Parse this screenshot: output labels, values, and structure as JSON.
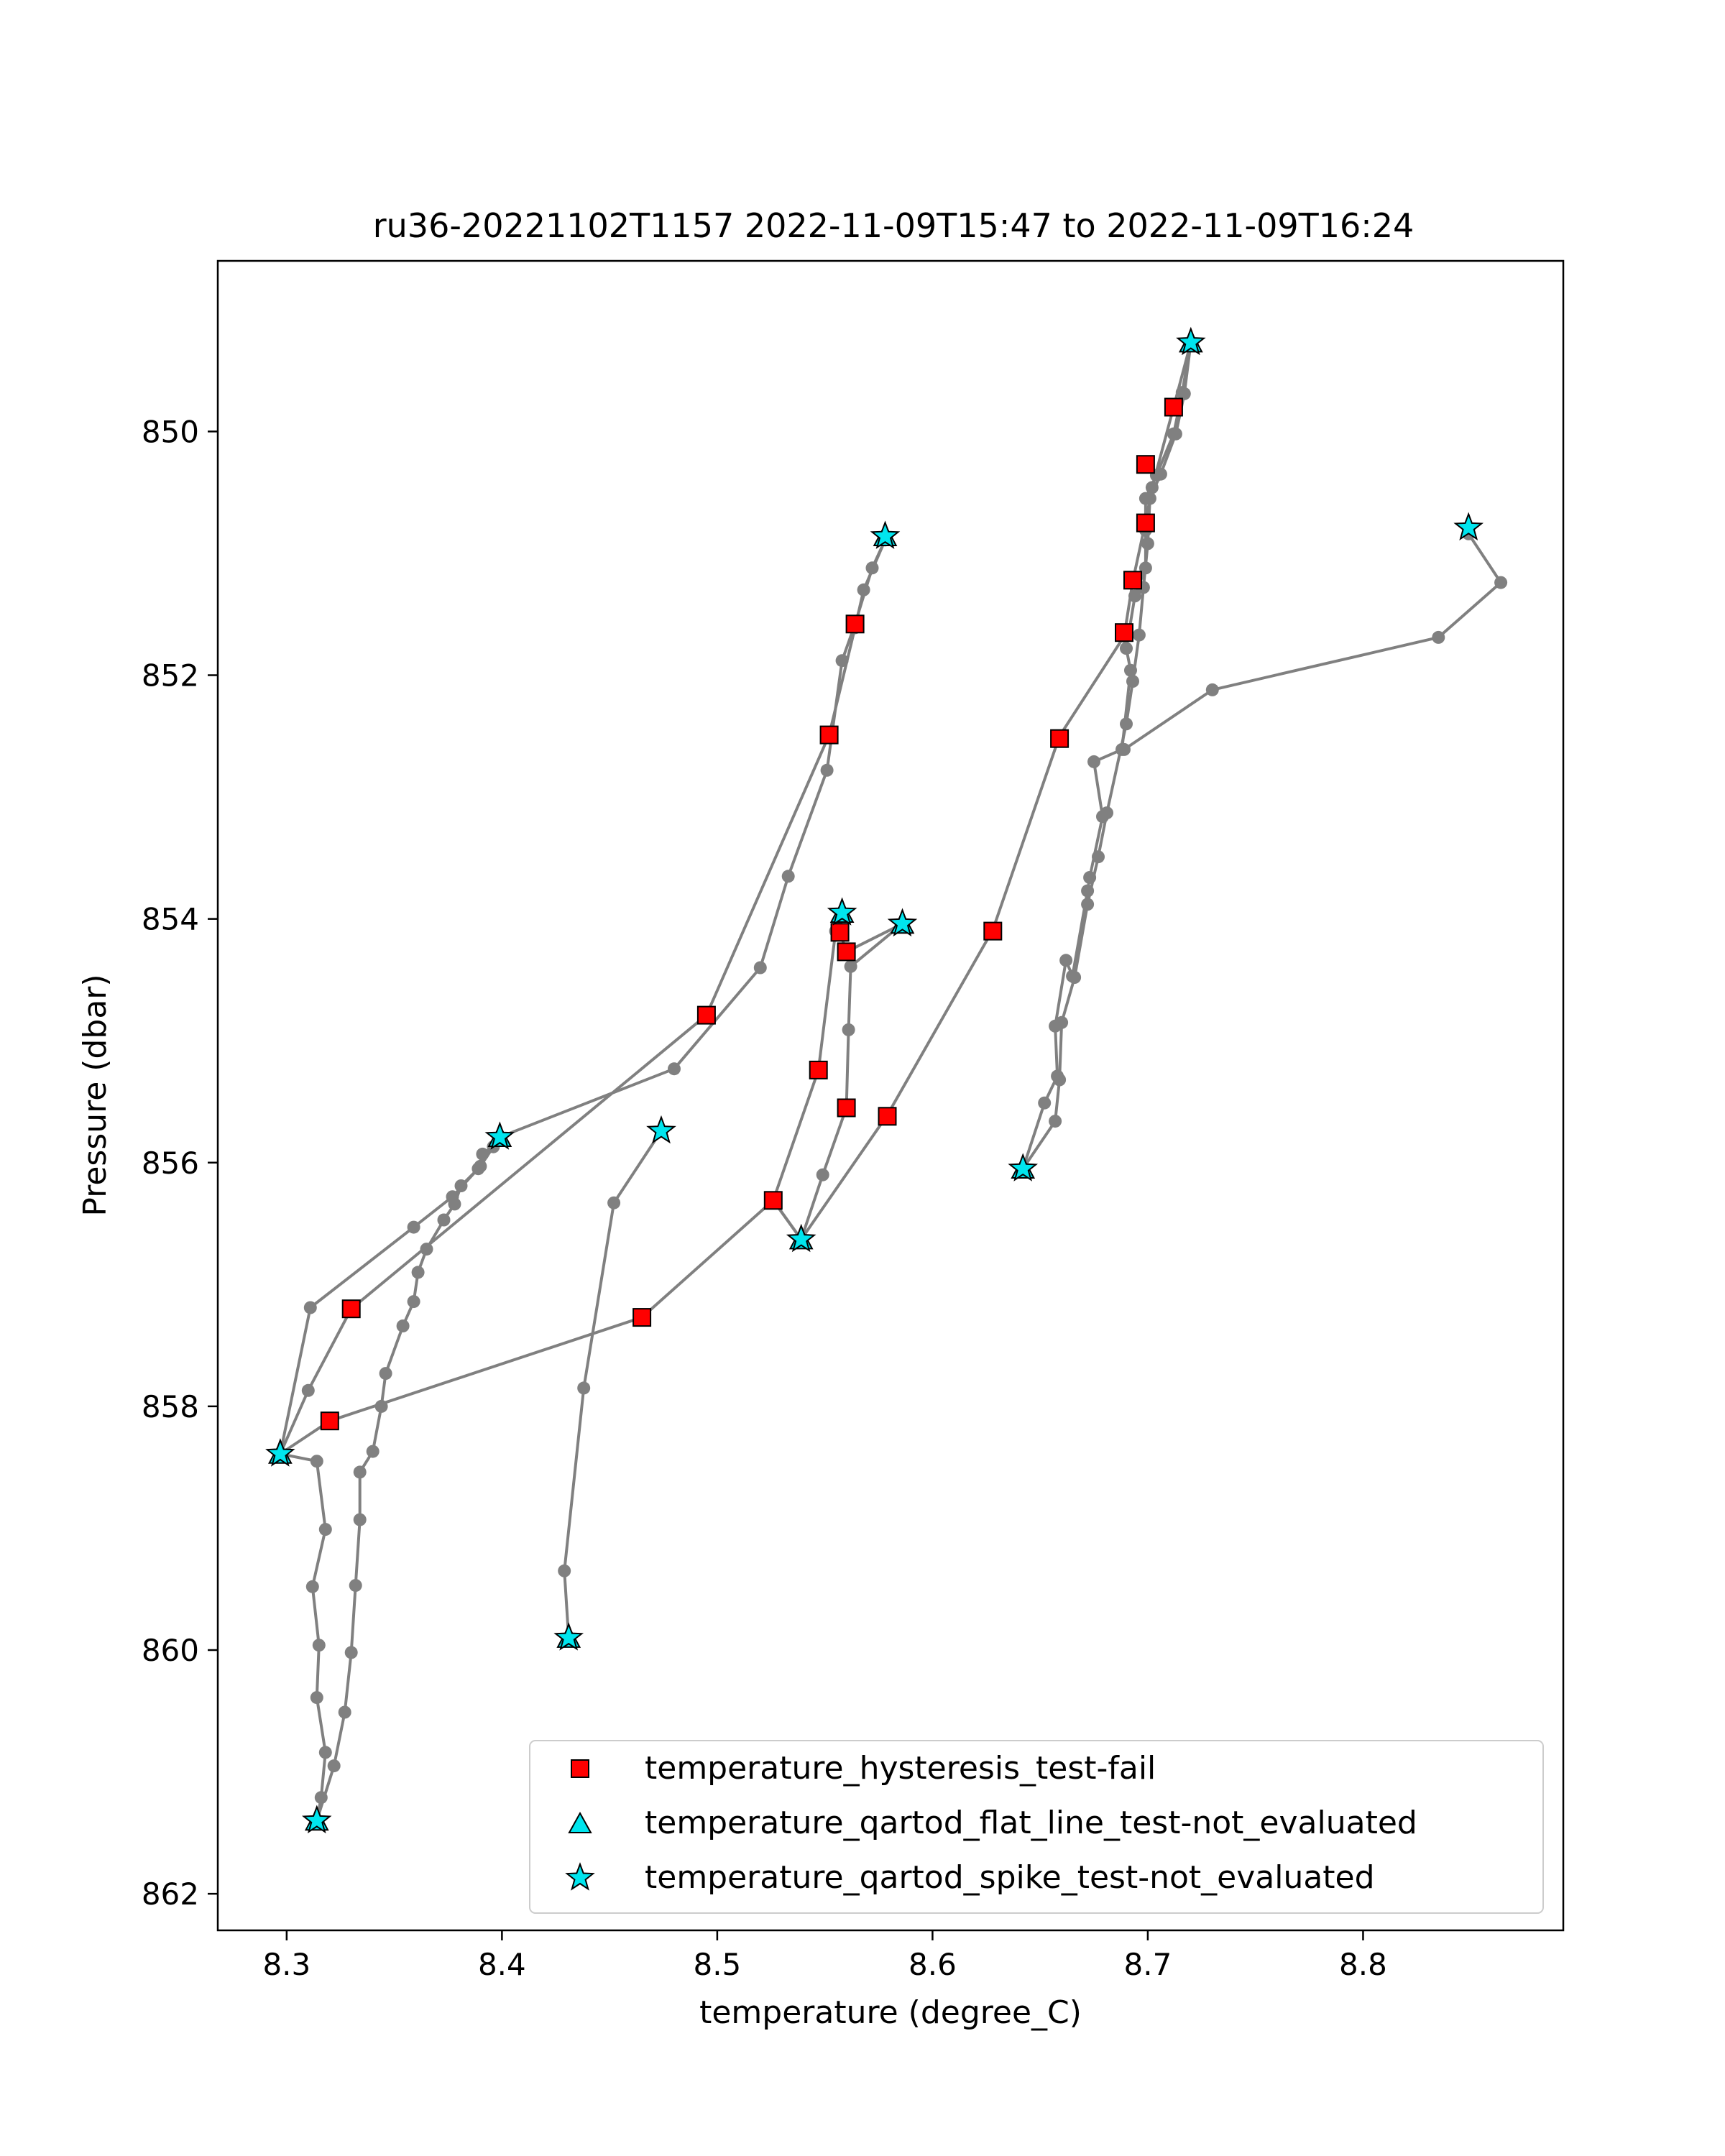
{
  "chart_data": {
    "type": "scatter",
    "title": "ru36-20221102T1157 2022-11-09T15:47 to 2022-11-09T16:24",
    "xlabel": "temperature (degree_C)",
    "ylabel": "Pressure (dbar)",
    "xlim": [
      8.268,
      8.893
    ],
    "ylim": [
      862.3,
      848.6
    ],
    "y_inverted": true,
    "grid": false,
    "legend_position": "lower-right",
    "x_ticks": [
      "8.3",
      "8.4",
      "8.5",
      "8.6",
      "8.7",
      "8.8"
    ],
    "y_ticks": [
      "850",
      "852",
      "854",
      "856",
      "858",
      "860",
      "862"
    ],
    "colors": {
      "line": "#808080",
      "hysteresis_fill": "#ff0000",
      "flatline_fill": "#00e5ee",
      "spike_fill": "#00e5ee",
      "marker_edge": "#000000"
    },
    "profiles": [
      [
        [
          8.72,
          849.27
        ],
        [
          8.716,
          849.68
        ],
        [
          8.712,
          850.02
        ],
        [
          8.704,
          850.36
        ],
        [
          8.699,
          850.55
        ],
        [
          8.699,
          850.81
        ],
        [
          8.699,
          851.12
        ],
        [
          8.694,
          851.35
        ],
        [
          8.69,
          851.78
        ],
        [
          8.692,
          851.96
        ],
        [
          8.688,
          852.61
        ],
        [
          8.675,
          852.71
        ],
        [
          8.679,
          853.16
        ],
        [
          8.673,
          853.66
        ],
        [
          8.672,
          853.77
        ],
        [
          8.665,
          854.47
        ],
        [
          8.662,
          854.34
        ],
        [
          8.657,
          854.88
        ],
        [
          8.658,
          855.29
        ],
        [
          8.652,
          855.51
        ],
        [
          8.642,
          856.05
        ]
      ],
      [
        [
          8.642,
          856.05
        ],
        [
          8.657,
          855.66
        ],
        [
          8.659,
          855.32
        ],
        [
          8.66,
          854.85
        ],
        [
          8.666,
          854.48
        ],
        [
          8.672,
          853.88
        ],
        [
          8.677,
          853.49
        ],
        [
          8.681,
          853.13
        ],
        [
          8.69,
          852.4
        ],
        [
          8.693,
          852.05
        ],
        [
          8.696,
          851.67
        ],
        [
          8.698,
          851.28
        ],
        [
          8.7,
          850.92
        ],
        [
          8.701,
          850.55
        ],
        [
          8.706,
          850.35
        ],
        [
          8.713,
          850.02
        ],
        [
          8.717,
          849.69
        ],
        [
          8.72,
          849.27
        ]
      ],
      [
        [
          8.72,
          849.27
        ],
        [
          8.712,
          849.8
        ],
        [
          8.702,
          850.46
        ],
        [
          8.699,
          850.74
        ],
        [
          8.693,
          851.23
        ],
        [
          8.689,
          851.68
        ],
        [
          8.659,
          852.5
        ],
        [
          8.628,
          854.09
        ],
        [
          8.579,
          855.61
        ],
        [
          8.539,
          856.63
        ]
      ],
      [
        [
          8.539,
          856.63
        ],
        [
          8.549,
          856.1
        ],
        [
          8.56,
          855.55
        ],
        [
          8.561,
          854.91
        ],
        [
          8.562,
          854.39
        ],
        [
          8.586,
          854.04
        ]
      ],
      [
        [
          8.586,
          854.04
        ],
        [
          8.56,
          854.27
        ],
        [
          8.557,
          854.11
        ],
        [
          8.558,
          853.95
        ],
        [
          8.555,
          854.1
        ],
        [
          8.547,
          855.24
        ],
        [
          8.526,
          856.31
        ],
        [
          8.539,
          856.63
        ]
      ],
      [
        [
          8.539,
          856.63
        ],
        [
          8.526,
          856.31
        ],
        [
          8.465,
          857.27
        ],
        [
          8.32,
          858.12
        ],
        [
          8.297,
          858.39
        ]
      ],
      [
        [
          8.297,
          858.39
        ],
        [
          8.314,
          858.45
        ],
        [
          8.318,
          859.01
        ],
        [
          8.312,
          859.48
        ],
        [
          8.315,
          859.96
        ],
        [
          8.314,
          860.39
        ],
        [
          8.318,
          860.84
        ],
        [
          8.316,
          861.21
        ],
        [
          8.314,
          861.4
        ]
      ],
      [
        [
          8.314,
          861.4
        ],
        [
          8.322,
          860.95
        ],
        [
          8.327,
          860.51
        ],
        [
          8.33,
          860.02
        ],
        [
          8.332,
          859.47
        ],
        [
          8.334,
          858.93
        ],
        [
          8.334,
          858.54
        ],
        [
          8.34,
          858.37
        ],
        [
          8.344,
          858.0
        ],
        [
          8.346,
          857.73
        ],
        [
          8.354,
          857.34
        ],
        [
          8.359,
          857.14
        ],
        [
          8.361,
          856.9
        ],
        [
          8.365,
          856.71
        ],
        [
          8.373,
          856.47
        ],
        [
          8.378,
          856.34
        ],
        [
          8.381,
          856.19
        ],
        [
          8.389,
          856.05
        ],
        [
          8.391,
          855.93
        ],
        [
          8.396,
          855.87
        ],
        [
          8.399,
          855.79
        ]
      ],
      [
        [
          8.399,
          855.79
        ],
        [
          8.48,
          855.23
        ],
        [
          8.52,
          854.4
        ],
        [
          8.533,
          853.65
        ],
        [
          8.551,
          852.78
        ],
        [
          8.558,
          851.88
        ],
        [
          8.564,
          851.58
        ],
        [
          8.572,
          851.12
        ],
        [
          8.578,
          850.89
        ]
      ],
      [
        [
          8.578,
          850.89
        ],
        [
          8.568,
          851.3
        ],
        [
          8.564,
          851.61
        ],
        [
          8.552,
          852.49
        ],
        [
          8.495,
          854.79
        ],
        [
          8.33,
          857.2
        ],
        [
          8.31,
          857.87
        ],
        [
          8.297,
          858.39
        ]
      ],
      [
        [
          8.297,
          858.39
        ],
        [
          8.311,
          857.19
        ],
        [
          8.359,
          856.53
        ],
        [
          8.377,
          856.28
        ],
        [
          8.39,
          856.03
        ],
        [
          8.399,
          855.79
        ]
      ],
      [
        [
          8.431,
          859.9
        ],
        [
          8.429,
          859.35
        ],
        [
          8.438,
          857.85
        ],
        [
          8.452,
          856.33
        ],
        [
          8.474,
          855.74
        ]
      ],
      [
        [
          8.849,
          850.84
        ],
        [
          8.864,
          851.24
        ],
        [
          8.835,
          851.69
        ],
        [
          8.73,
          852.12
        ],
        [
          8.689,
          852.61
        ]
      ]
    ],
    "series": [
      {
        "name": "temperature_hysteresis_test-fail",
        "marker": "square",
        "points": [
          [
            8.712,
            849.8
          ],
          [
            8.699,
            850.27
          ],
          [
            8.699,
            850.75
          ],
          [
            8.693,
            851.22
          ],
          [
            8.689,
            851.65
          ],
          [
            8.659,
            852.52
          ],
          [
            8.628,
            854.1
          ],
          [
            8.579,
            855.62
          ],
          [
            8.564,
            851.58
          ],
          [
            8.552,
            852.49
          ],
          [
            8.495,
            854.79
          ],
          [
            8.33,
            857.2
          ],
          [
            8.32,
            858.12
          ],
          [
            8.465,
            857.27
          ],
          [
            8.526,
            856.31
          ],
          [
            8.547,
            855.24
          ],
          [
            8.56,
            855.55
          ],
          [
            8.56,
            854.27
          ],
          [
            8.557,
            854.11
          ]
        ]
      },
      {
        "name": "temperature_qartod_flat_line_test-not_evaluated",
        "marker": "triangle",
        "points": [
          [
            8.72,
            849.27
          ],
          [
            8.578,
            850.86
          ],
          [
            8.586,
            854.04
          ],
          [
            8.558,
            853.95
          ],
          [
            8.539,
            856.63
          ],
          [
            8.642,
            856.05
          ],
          [
            8.399,
            855.79
          ],
          [
            8.297,
            858.39
          ],
          [
            8.314,
            861.4
          ],
          [
            8.431,
            859.9
          ]
        ]
      },
      {
        "name": "temperature_qartod_spike_test-not_evaluated",
        "marker": "star",
        "points": [
          [
            8.72,
            849.27
          ],
          [
            8.578,
            850.86
          ],
          [
            8.586,
            854.04
          ],
          [
            8.558,
            853.95
          ],
          [
            8.539,
            856.63
          ],
          [
            8.642,
            856.05
          ],
          [
            8.399,
            855.79
          ],
          [
            8.297,
            858.39
          ],
          [
            8.314,
            861.4
          ],
          [
            8.431,
            859.9
          ],
          [
            8.849,
            850.79
          ],
          [
            8.474,
            855.74
          ]
        ]
      }
    ]
  }
}
